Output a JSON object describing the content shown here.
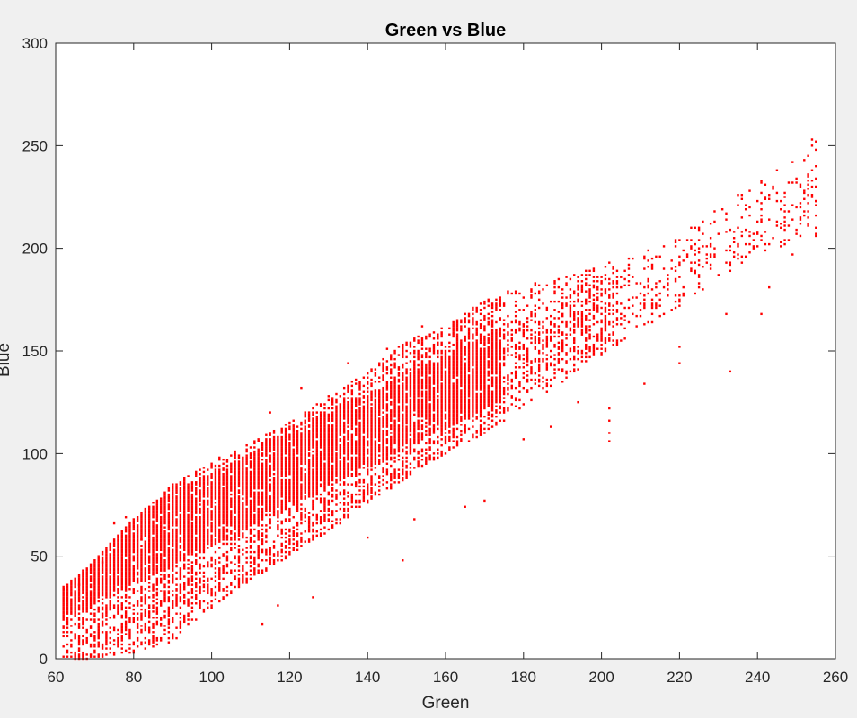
{
  "chart_data": {
    "type": "scatter",
    "title": "Green vs Blue",
    "xlabel": "Green",
    "ylabel": "Blue",
    "xlim": [
      60,
      260
    ],
    "ylim": [
      0,
      300
    ],
    "xticks": [
      "60",
      "80",
      "100",
      "120",
      "140",
      "160",
      "180",
      "200",
      "220",
      "240",
      "260"
    ],
    "yticks": [
      "0",
      "50",
      "100",
      "150",
      "200",
      "250",
      "300"
    ],
    "grid": false,
    "marker_color": "#ff0000",
    "background_color": "#f0f0f0",
    "plot_color": "#ffffff",
    "trend": {
      "slope": 0.95,
      "intercept": -22
    },
    "band": [
      {
        "x": 62,
        "y_min": 0,
        "y_max": 35
      },
      {
        "x": 70,
        "y_min": 0,
        "y_max": 48
      },
      {
        "x": 80,
        "y_min": 3,
        "y_max": 68
      },
      {
        "x": 90,
        "y_min": 8,
        "y_max": 85
      },
      {
        "x": 100,
        "y_min": 25,
        "y_max": 95
      },
      {
        "x": 110,
        "y_min": 38,
        "y_max": 105
      },
      {
        "x": 120,
        "y_min": 50,
        "y_max": 115
      },
      {
        "x": 130,
        "y_min": 62,
        "y_max": 128
      },
      {
        "x": 140,
        "y_min": 75,
        "y_max": 140
      },
      {
        "x": 150,
        "y_min": 88,
        "y_max": 155
      },
      {
        "x": 160,
        "y_min": 100,
        "y_max": 162
      },
      {
        "x": 170,
        "y_min": 110,
        "y_max": 175
      },
      {
        "x": 180,
        "y_min": 122,
        "y_max": 182
      },
      {
        "x": 190,
        "y_min": 135,
        "y_max": 186
      },
      {
        "x": 200,
        "y_min": 148,
        "y_max": 192
      },
      {
        "x": 210,
        "y_min": 160,
        "y_max": 198
      },
      {
        "x": 220,
        "y_min": 172,
        "y_max": 208
      },
      {
        "x": 230,
        "y_min": 185,
        "y_max": 220
      },
      {
        "x": 240,
        "y_min": 198,
        "y_max": 232
      },
      {
        "x": 255,
        "y_min": 205,
        "y_max": 255
      }
    ],
    "outliers": [
      {
        "x": 62,
        "y": 34
      },
      {
        "x": 66,
        "y": 36
      },
      {
        "x": 72,
        "y": 47
      },
      {
        "x": 75,
        "y": 66
      },
      {
        "x": 78,
        "y": 69
      },
      {
        "x": 82,
        "y": 58
      },
      {
        "x": 96,
        "y": 86
      },
      {
        "x": 102,
        "y": 98
      },
      {
        "x": 112,
        "y": 106
      },
      {
        "x": 115,
        "y": 120
      },
      {
        "x": 123,
        "y": 132
      },
      {
        "x": 135,
        "y": 144
      },
      {
        "x": 145,
        "y": 151
      },
      {
        "x": 154,
        "y": 162
      },
      {
        "x": 113,
        "y": 17
      },
      {
        "x": 117,
        "y": 26
      },
      {
        "x": 126,
        "y": 30
      },
      {
        "x": 140,
        "y": 59
      },
      {
        "x": 149,
        "y": 48
      },
      {
        "x": 152,
        "y": 68
      },
      {
        "x": 165,
        "y": 74
      },
      {
        "x": 170,
        "y": 77
      },
      {
        "x": 180,
        "y": 107
      },
      {
        "x": 187,
        "y": 113
      },
      {
        "x": 194,
        "y": 125
      },
      {
        "x": 202,
        "y": 106
      },
      {
        "x": 202,
        "y": 110
      },
      {
        "x": 202,
        "y": 116
      },
      {
        "x": 202,
        "y": 122
      },
      {
        "x": 211,
        "y": 134
      },
      {
        "x": 220,
        "y": 144
      },
      {
        "x": 220,
        "y": 152
      },
      {
        "x": 233,
        "y": 140
      },
      {
        "x": 232,
        "y": 168
      },
      {
        "x": 241,
        "y": 168
      },
      {
        "x": 243,
        "y": 181
      },
      {
        "x": 249,
        "y": 197
      },
      {
        "x": 255,
        "y": 206
      },
      {
        "x": 255,
        "y": 210
      },
      {
        "x": 255,
        "y": 223
      },
      {
        "x": 255,
        "y": 230
      },
      {
        "x": 255,
        "y": 240
      },
      {
        "x": 255,
        "y": 248
      },
      {
        "x": 255,
        "y": 252
      },
      {
        "x": 253,
        "y": 236
      }
    ]
  }
}
